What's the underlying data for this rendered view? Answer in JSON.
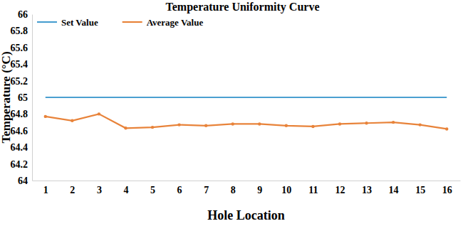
{
  "chart_data": {
    "type": "line",
    "title": "Temperature Uniformity Curve",
    "x_label": "Hole Location",
    "y_label": "Temperature (°C)",
    "categories": [
      "1",
      "2",
      "3",
      "4",
      "5",
      "6",
      "7",
      "8",
      "9",
      "10",
      "11",
      "12",
      "13",
      "14",
      "15",
      "16"
    ],
    "series": [
      {
        "name": "Set Value",
        "color": "#4a9fd0",
        "line_style": "solid",
        "marker": "none",
        "values": [
          65,
          65,
          65,
          65,
          65,
          65,
          65,
          65,
          65,
          65,
          65,
          65,
          65,
          65,
          65,
          65
        ]
      },
      {
        "name": "Average Value",
        "color": "#e8833a",
        "line_style": "solid",
        "marker": "circle",
        "values": [
          64.77,
          64.72,
          64.8,
          64.63,
          64.64,
          64.67,
          64.66,
          64.68,
          64.68,
          64.66,
          64.65,
          64.68,
          64.69,
          64.7,
          64.67,
          64.62
        ]
      }
    ],
    "ylim": [
      64,
      66
    ],
    "yticks": [
      64,
      64.2,
      64.4,
      64.6,
      64.8,
      65,
      65.2,
      65.4,
      65.6,
      65.8,
      66
    ],
    "grid": false,
    "legend": "top-left"
  }
}
